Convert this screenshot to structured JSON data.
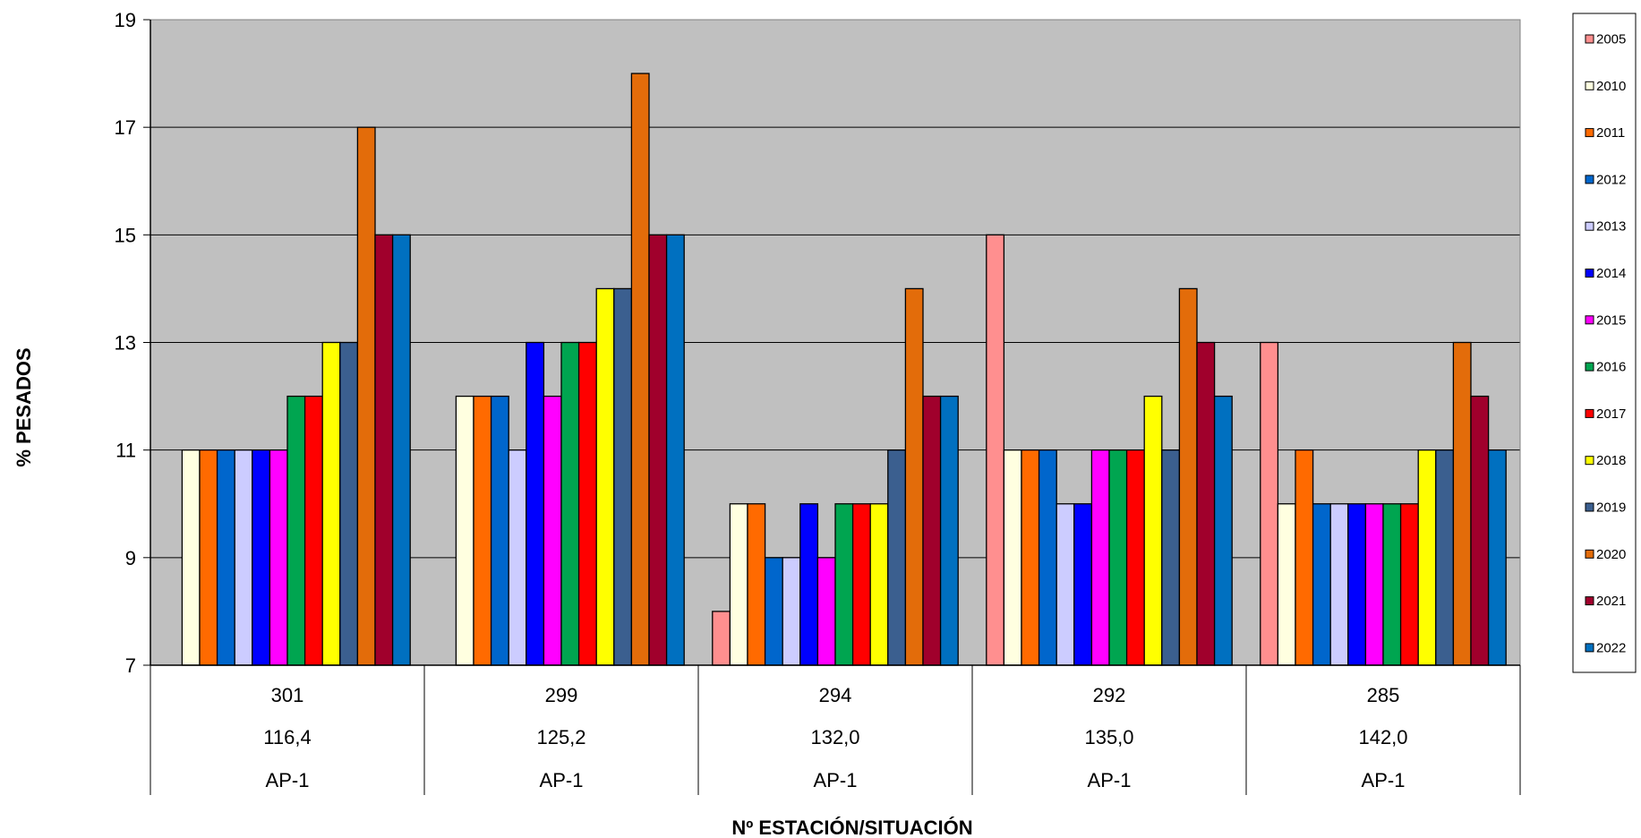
{
  "chart_data": {
    "type": "bar",
    "title": "",
    "xlabel": "Nº ESTACIÓN/SITUACIÓN",
    "ylabel": "% PESADOS",
    "ylim": [
      7,
      19
    ],
    "yticks": [
      7,
      9,
      11,
      13,
      15,
      17,
      19
    ],
    "grid": true,
    "legend_position": "right",
    "plot_background": "#C0C0C0",
    "categories": [
      {
        "station": "301",
        "pk": "116,4",
        "road": "AP-1"
      },
      {
        "station": "299",
        "pk": "125,2",
        "road": "AP-1"
      },
      {
        "station": "294",
        "pk": "132,0",
        "road": "AP-1"
      },
      {
        "station": "292",
        "pk": "135,0",
        "road": "AP-1"
      },
      {
        "station": "285",
        "pk": "142,0",
        "road": "AP-1"
      }
    ],
    "series": [
      {
        "name": "2005",
        "color": "#FF8F8F",
        "values": [
          null,
          null,
          8,
          15,
          13
        ]
      },
      {
        "name": "2010",
        "color": "#FFFFE0",
        "values": [
          11,
          12,
          10,
          11,
          10
        ]
      },
      {
        "name": "2011",
        "color": "#FF6A00",
        "values": [
          11,
          12,
          10,
          11,
          11
        ]
      },
      {
        "name": "2012",
        "color": "#0066CC",
        "values": [
          11,
          12,
          9,
          11,
          10
        ]
      },
      {
        "name": "2013",
        "color": "#CCCCFF",
        "values": [
          11,
          11,
          9,
          10,
          10
        ]
      },
      {
        "name": "2014",
        "color": "#0000FF",
        "values": [
          11,
          13,
          10,
          10,
          10
        ]
      },
      {
        "name": "2015",
        "color": "#FF00FF",
        "values": [
          11,
          12,
          9,
          11,
          10
        ]
      },
      {
        "name": "2016",
        "color": "#00A550",
        "values": [
          12,
          13,
          10,
          11,
          10
        ]
      },
      {
        "name": "2017",
        "color": "#FF0000",
        "values": [
          12,
          13,
          10,
          11,
          10
        ]
      },
      {
        "name": "2018",
        "color": "#FFFF00",
        "values": [
          13,
          14,
          10,
          12,
          11
        ]
      },
      {
        "name": "2019",
        "color": "#3B5F8F",
        "values": [
          13,
          14,
          11,
          11,
          11
        ]
      },
      {
        "name": "2020",
        "color": "#E36C0A",
        "values": [
          17,
          18,
          14,
          14,
          13
        ]
      },
      {
        "name": "2021",
        "color": "#A0002C",
        "values": [
          15,
          15,
          12,
          13,
          12
        ]
      },
      {
        "name": "2022",
        "color": "#0070C0",
        "values": [
          15,
          15,
          12,
          12,
          11
        ]
      }
    ]
  }
}
